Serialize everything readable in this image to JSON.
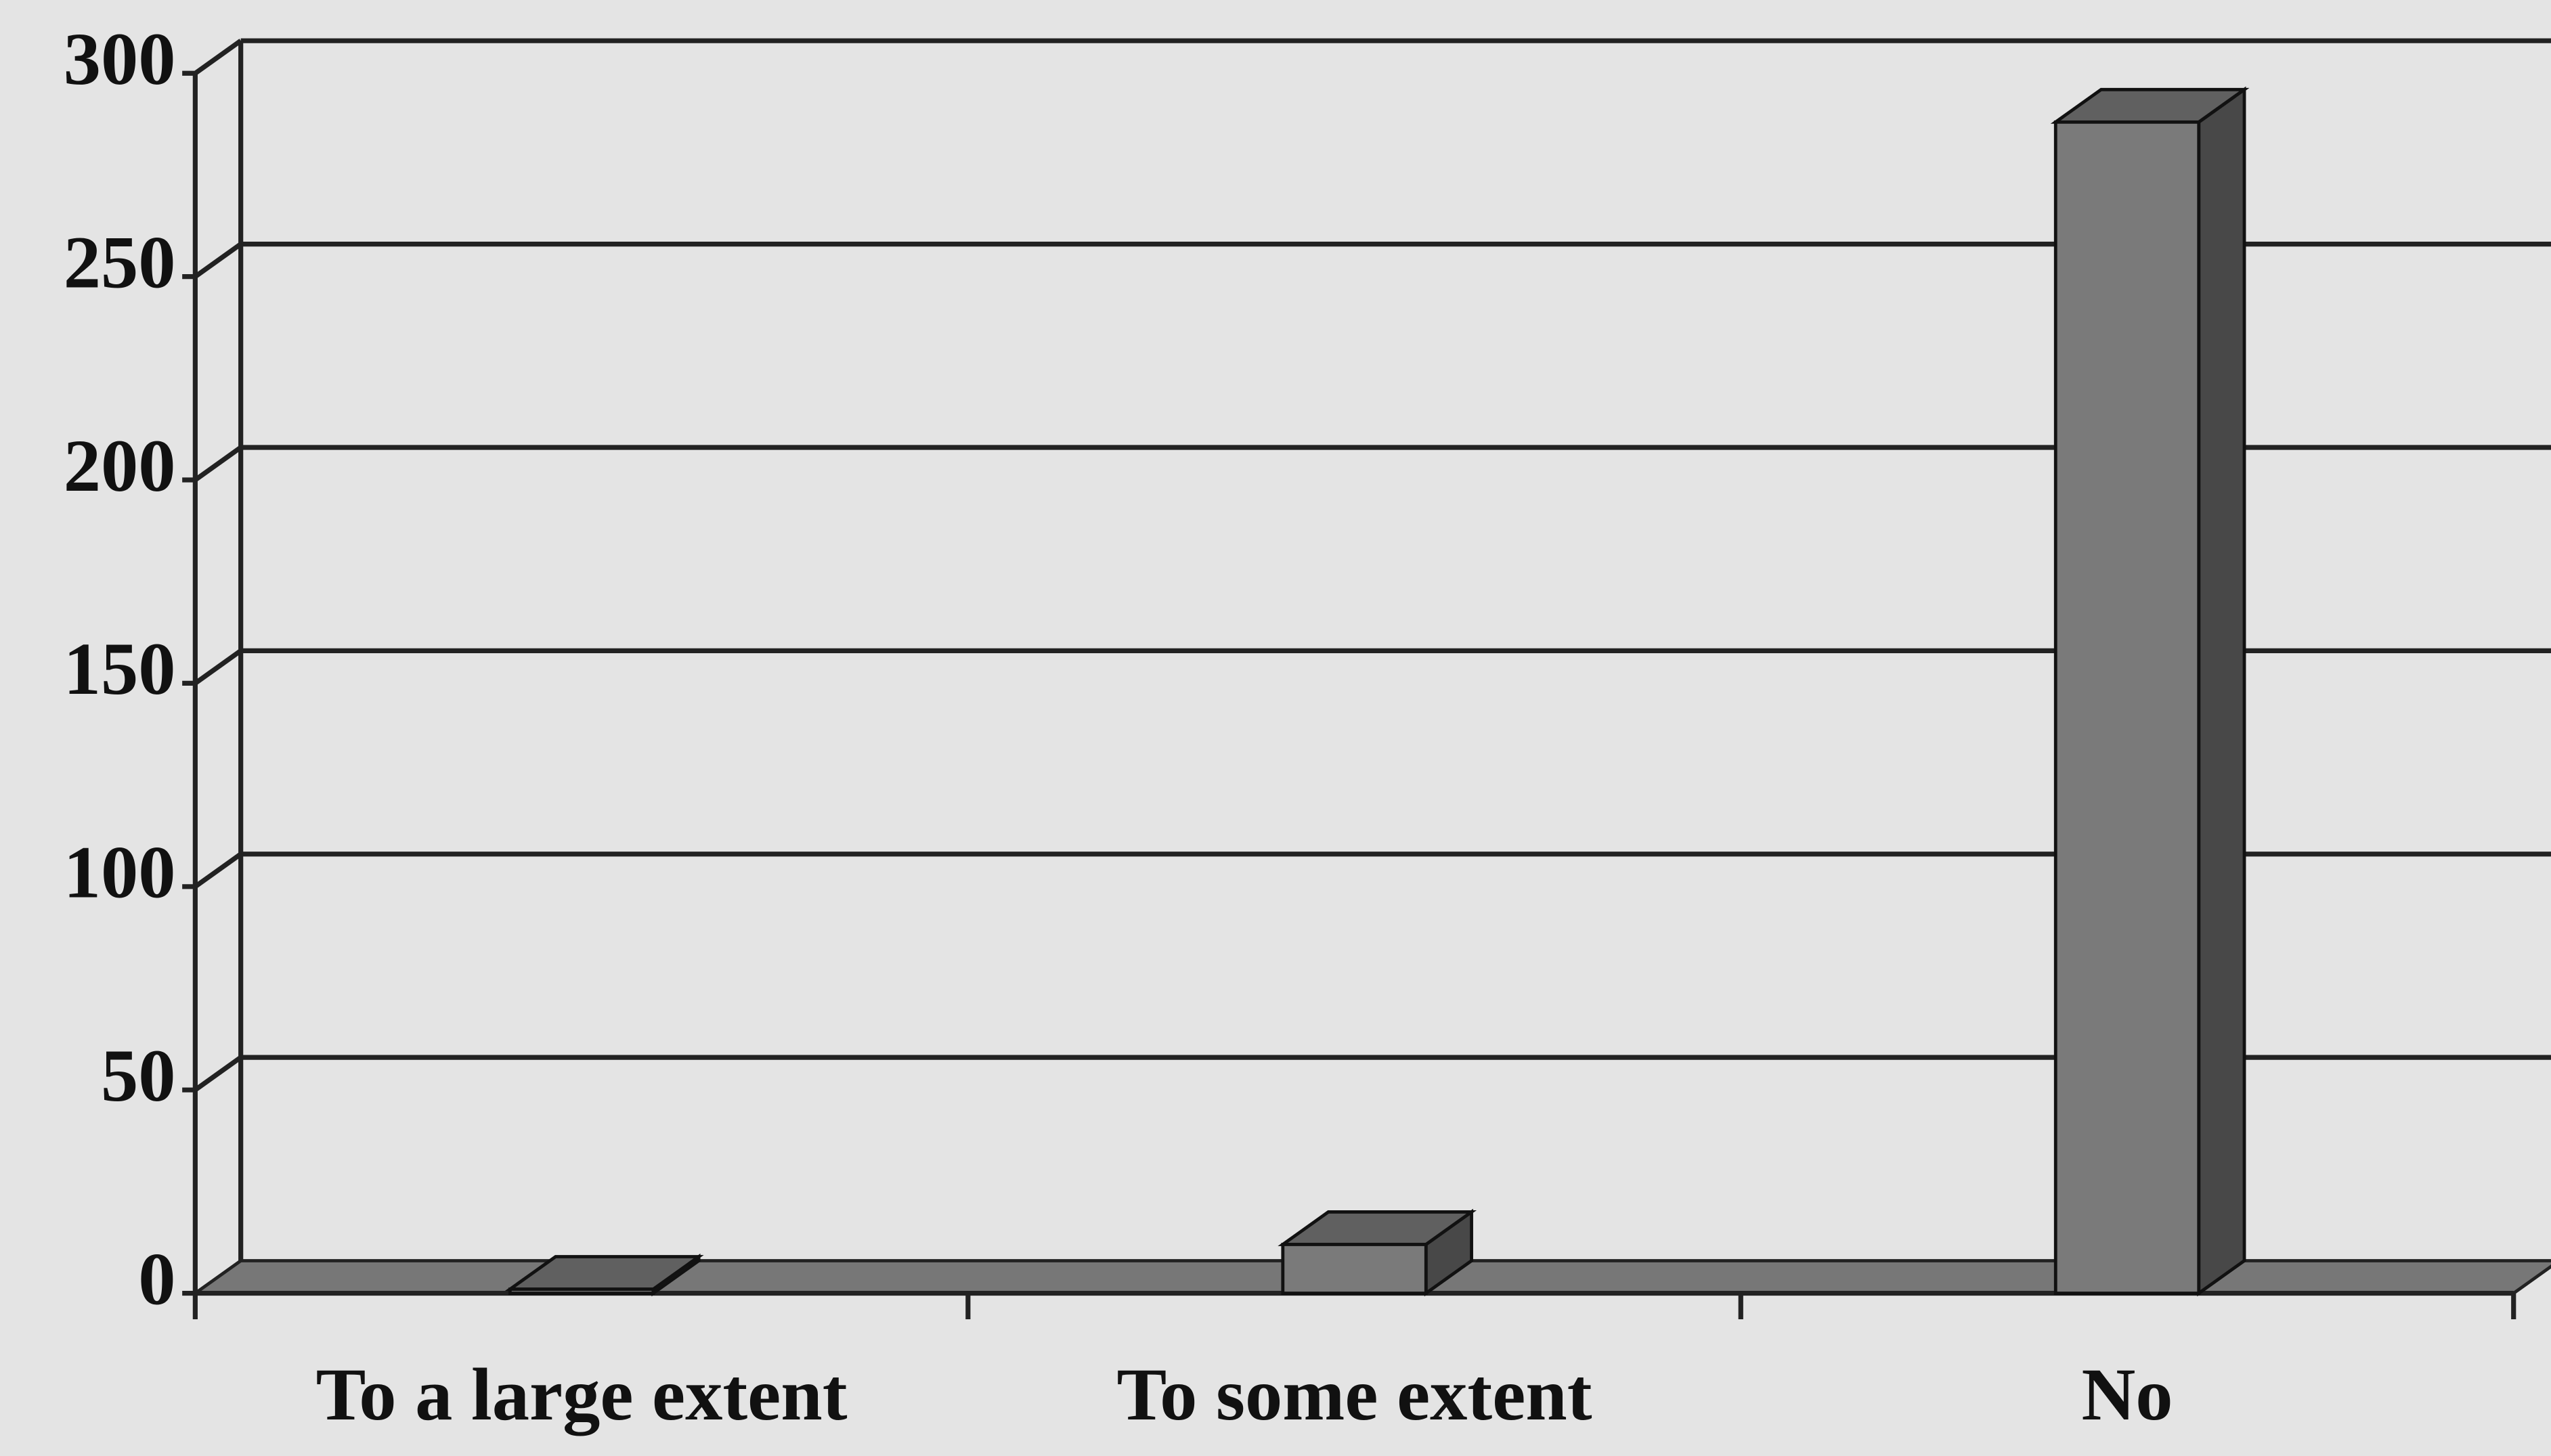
{
  "chart_data": {
    "type": "bar",
    "categories": [
      "To a large extent",
      "To some extent",
      "No"
    ],
    "values": [
      1,
      12,
      288
    ],
    "color": "#7a7a7a",
    "ylim": [
      0,
      300
    ],
    "yticks": [
      0,
      50,
      100,
      150,
      200,
      250,
      300
    ],
    "grid": true
  }
}
